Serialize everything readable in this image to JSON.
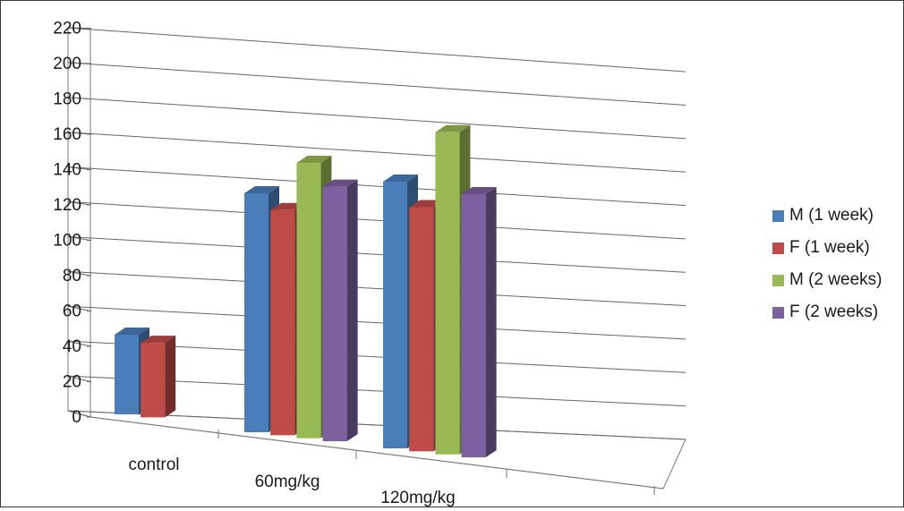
{
  "chart_data": {
    "type": "bar",
    "title": "",
    "xlabel": "",
    "ylabel": "",
    "categories": [
      "control",
      "60mg/kg",
      "120mg/kg"
    ],
    "ylim": [
      0,
      220
    ],
    "yticks": [
      0,
      20,
      40,
      60,
      80,
      100,
      120,
      140,
      160,
      180,
      200,
      220
    ],
    "series": [
      {
        "name": "M (1 week)",
        "color": "#4a7ebb",
        "values": [
          46,
          138,
          154
        ]
      },
      {
        "name": "F (1 week)",
        "color": "#be4b48",
        "values": [
          43,
          130,
          141
        ]
      },
      {
        "name": "M (2 weeks)",
        "color": "#98b954",
        "values": [
          null,
          159,
          186
        ]
      },
      {
        "name": "F (2 weeks)",
        "color": "#7d60a0",
        "values": [
          null,
          147,
          152
        ]
      }
    ],
    "grid": true,
    "legend": "right",
    "style": "3d-clustered-column"
  }
}
